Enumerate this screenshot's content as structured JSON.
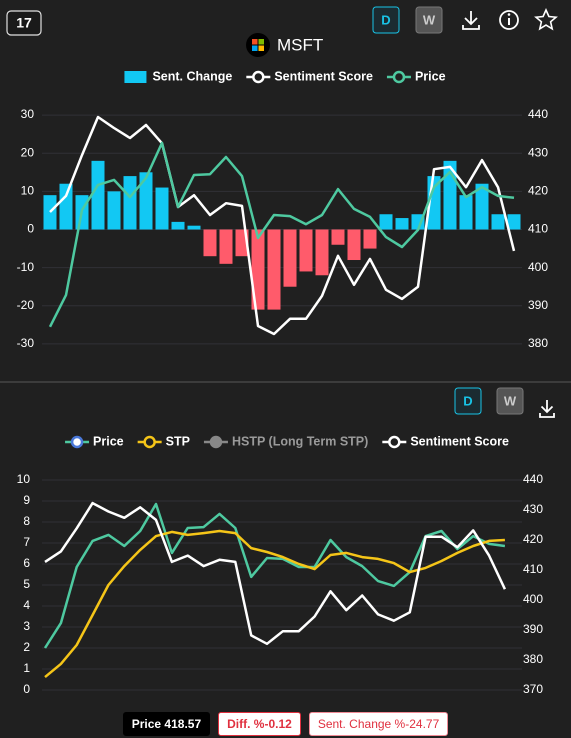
{
  "toolbar": {
    "badge": "17",
    "buttons": [
      "D",
      "W"
    ]
  },
  "lower_toolbar": {
    "buttons": [
      "D",
      "W"
    ]
  },
  "footer": [
    "Price 418.57",
    "Diff. %-0.12",
    "Sent. Change %-24.77"
  ],
  "chart_data": [
    {
      "type": "bar",
      "title": "MSFT",
      "categories": [
        null,
        null,
        null,
        null,
        null,
        null,
        null,
        null,
        null,
        null,
        null,
        null,
        null,
        null,
        null,
        null,
        null,
        null,
        null,
        null,
        null,
        null,
        null,
        null,
        null,
        null,
        null,
        null,
        null,
        null
      ],
      "series": [
        {
          "name": "Sent. Change",
          "type": "bar",
          "color": "#12c8f3",
          "negative_color": "#ff5b6b",
          "values": [
            9,
            12,
            9,
            18,
            10,
            14,
            15,
            11,
            2,
            1,
            -7,
            -9,
            -7,
            -21,
            -21,
            -15,
            -11,
            -12,
            -4,
            -8,
            -5,
            4,
            3,
            4,
            14,
            18,
            9,
            12,
            4,
            4
          ]
        },
        {
          "name": "Sentiment Score",
          "type": "line",
          "color": "#ffffff",
          "values": [
            4.6,
            8.8,
            19.5,
            29.5,
            26.6,
            24,
            27.4,
            22.6,
            5.9,
            9,
            3.8,
            6.9,
            6.2,
            -25.3,
            -27.4,
            -23.4,
            -23.4,
            -17.4,
            -6.9,
            -14.5,
            -7.7,
            -15.8,
            -18.2,
            -15,
            15.8,
            16.4,
            11.1,
            18.2,
            11.1,
            -5.6
          ]
        },
        {
          "name": "Price",
          "type": "line",
          "color": "#4ec9a0",
          "axis": "y2",
          "values": [
            384.5,
            392.8,
            415.1,
            421.7,
            423,
            418.5,
            423.5,
            432.7,
            415.9,
            424.3,
            424.5,
            429,
            424,
            407.8,
            413.8,
            413.5,
            411.4,
            413.8,
            420.6,
            415.4,
            413.3,
            408,
            405.4,
            409.9,
            421.1,
            425.1,
            418.5,
            421.1,
            418.8,
            418.3
          ]
        }
      ],
      "ylim": [
        -35,
        35
      ],
      "yticks": [
        -30,
        -20,
        -10,
        0,
        10,
        20,
        30
      ],
      "y2lim": [
        375,
        445
      ],
      "y2ticks": [
        380,
        390,
        400,
        410,
        420,
        430,
        440
      ],
      "grid": true
    },
    {
      "type": "line",
      "categories": [
        null,
        null,
        null,
        null,
        null,
        null,
        null,
        null,
        null,
        null,
        null,
        null,
        null,
        null,
        null,
        null,
        null,
        null,
        null,
        null,
        null,
        null,
        null,
        null,
        null,
        null,
        null,
        null,
        null,
        null
      ],
      "series": [
        {
          "name": "Price",
          "color": "#4ec9a0",
          "marker_color": "#4a78d8",
          "axis": "y2",
          "values": [
            384,
            392.3,
            411,
            419.7,
            421.7,
            418,
            423,
            432,
            415.7,
            424,
            424.3,
            428.7,
            424,
            407.7,
            414,
            413.7,
            411,
            411,
            420,
            414.3,
            411.3,
            406.3,
            404.7,
            409.3,
            421.3,
            423,
            417,
            421.3,
            418.7,
            418
          ]
        },
        {
          "name": "STP",
          "color": "#f5c518",
          "axis": "y2",
          "values": [
            374.3,
            378.7,
            385,
            395,
            405,
            411.3,
            416.7,
            421.3,
            422.7,
            421.7,
            422.3,
            423,
            422.3,
            417.3,
            416,
            414.3,
            412,
            410.3,
            415,
            415.7,
            414.3,
            413.7,
            412.3,
            409.3,
            410.7,
            413,
            415.7,
            418,
            419.7,
            420
          ]
        },
        {
          "name": "HSTP (Long Term STP)",
          "color": "#888888",
          "visible": false,
          "axis": "y2"
        },
        {
          "name": "Sentiment Score",
          "color": "#ffffff",
          "values": [
            6.1,
            6.6,
            7.7,
            8.9,
            8.5,
            8.2,
            8.7,
            8.1,
            6.1,
            6.4,
            5.9,
            6.2,
            6.1,
            2.6,
            2.2,
            2.8,
            2.8,
            3.5,
            4.7,
            3.8,
            4.5,
            3.6,
            3.3,
            3.7,
            7.3,
            7.3,
            6.8,
            7.6,
            6.4,
            4.8
          ]
        }
      ],
      "ylim": [
        0,
        10
      ],
      "yticks": [
        0,
        1,
        2,
        3,
        4,
        5,
        6,
        7,
        8,
        9,
        10
      ],
      "y2lim": [
        370,
        440
      ],
      "y2ticks": [
        370,
        380,
        390,
        400,
        410,
        420,
        430,
        440
      ],
      "grid": true
    }
  ]
}
